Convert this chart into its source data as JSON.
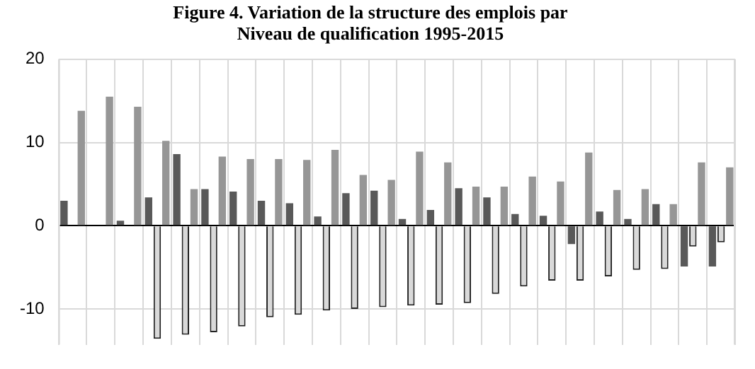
{
  "chart_data": {
    "type": "bar",
    "title": "Figure 4. Variation de la structure des emplois par\nNiveau de qualification 1995-2015",
    "categories": [
      null,
      null,
      null,
      null,
      null,
      null,
      null,
      null,
      null,
      null,
      null,
      null,
      null,
      null,
      null,
      null,
      null,
      null,
      null,
      null,
      null,
      null,
      null,
      null
    ],
    "series": [
      {
        "color": "#595959",
        "values": [
          3.0,
          0,
          0.6,
          3.4,
          8.6,
          4.4,
          4.1,
          3.0,
          2.7,
          1.1,
          3.9,
          4.2,
          0.8,
          1.9,
          4.5,
          3.4,
          1.4,
          1.2,
          -2.2,
          1.7,
          0.8,
          2.6,
          -4.9,
          -4.9
        ]
      },
      {
        "color": "#d9d9d9",
        "values": [
          null,
          null,
          null,
          -13.6,
          -13.1,
          -12.8,
          -12.1,
          -11.0,
          -10.7,
          -10.2,
          -10.0,
          -9.8,
          -9.6,
          -9.5,
          -9.3,
          -8.2,
          -7.3,
          -6.6,
          -6.6,
          -6.1,
          -5.3,
          -5.2,
          -2.5,
          -2.0
        ]
      },
      {
        "color": "#969696",
        "values": [
          13.8,
          15.5,
          14.3,
          10.2,
          4.4,
          8.3,
          8.0,
          8.0,
          7.9,
          9.1,
          6.1,
          5.5,
          8.9,
          7.6,
          4.7,
          4.7,
          5.9,
          5.3,
          8.8,
          4.3,
          4.4,
          2.6,
          7.6,
          7.0
        ]
      }
    ],
    "ylim": [
      -14.3,
      20
    ],
    "yticks": [
      20,
      10,
      0,
      -10
    ],
    "grid": true,
    "legend": false
  }
}
